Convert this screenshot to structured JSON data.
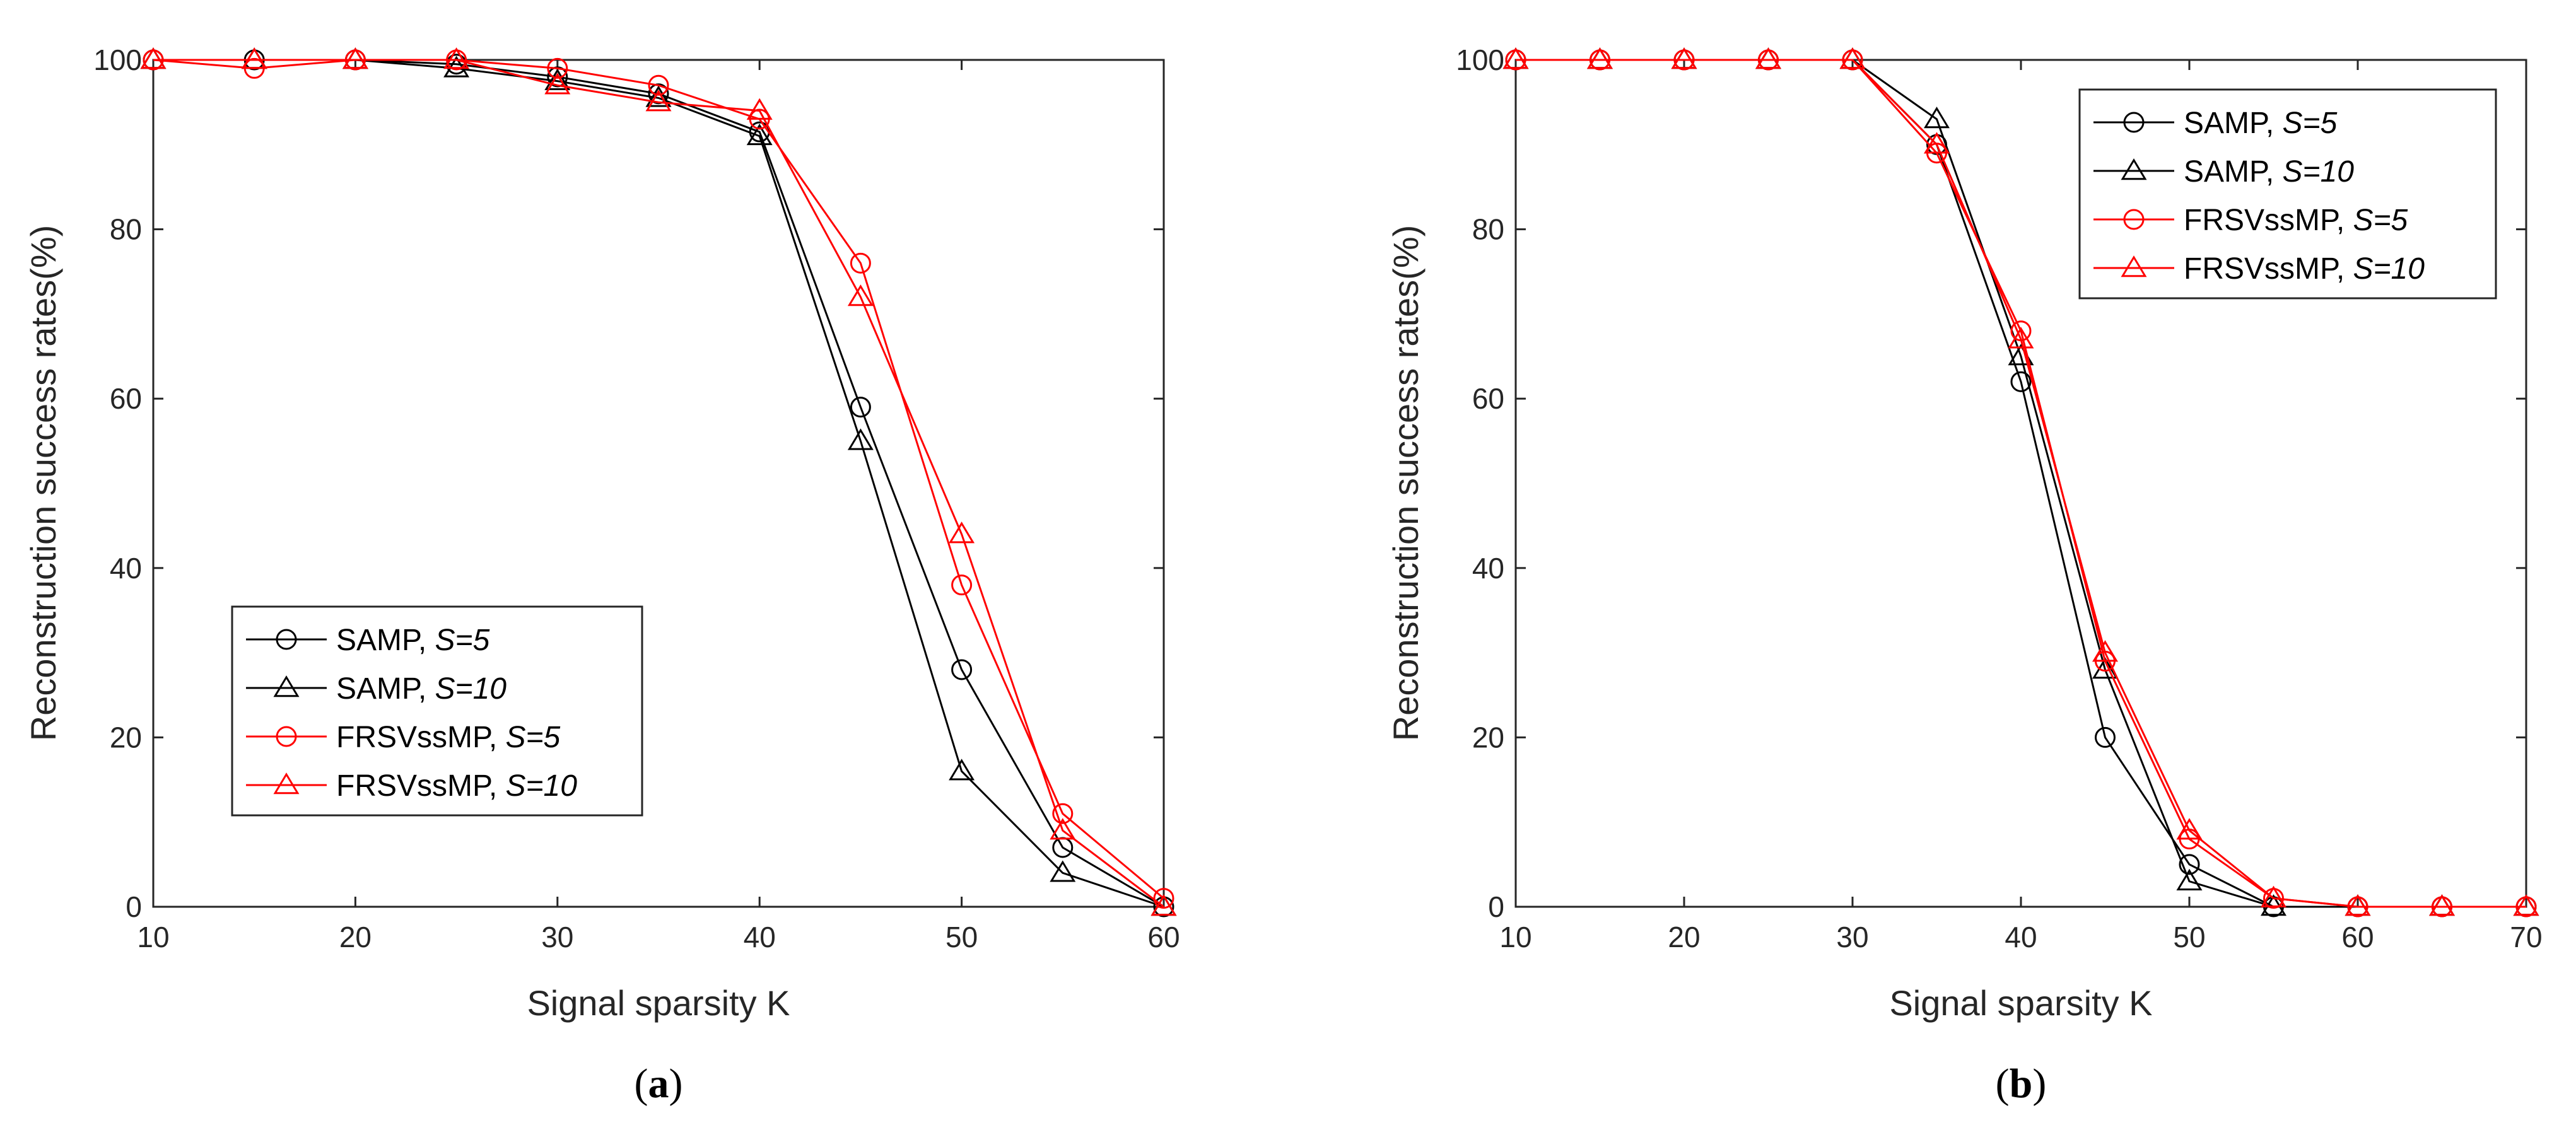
{
  "chart_data": [
    {
      "type": "line",
      "caption": {
        "open": "(",
        "letter": "a",
        "close": ")"
      },
      "xlabel": "Signal sparsity K",
      "ylabel": "Reconstruction success rates(%)",
      "xlim": [
        10,
        60
      ],
      "ylim": [
        0,
        100
      ],
      "xticks": [
        10,
        20,
        30,
        40,
        50,
        60
      ],
      "yticks": [
        0,
        20,
        40,
        60,
        80,
        100
      ],
      "grid": false,
      "legend_position": "center-left",
      "x": [
        10,
        15,
        20,
        25,
        30,
        35,
        40,
        45,
        50,
        55,
        60
      ],
      "series": [
        {
          "name": "SAMP, S=5",
          "label_main": "SAMP, ",
          "label_param": "S=5",
          "color": "#000000",
          "marker": "circle",
          "values": [
            100,
            100,
            100,
            99.5,
            98,
            96,
            91.5,
            59,
            28,
            7,
            0
          ]
        },
        {
          "name": "SAMP, S=10",
          "label_main": "SAMP, ",
          "label_param": "S=10",
          "color": "#000000",
          "marker": "triangle",
          "values": [
            100,
            100,
            100,
            99,
            97.5,
            95.5,
            91,
            55,
            16,
            4,
            0
          ]
        },
        {
          "name": "FRSVssMP, S=5",
          "label_main": "FRSVssMP, ",
          "label_param": "S=5",
          "color": "#ff0000",
          "marker": "circle",
          "values": [
            100,
            99,
            100,
            100,
            99,
            97,
            93,
            76,
            38,
            11,
            1
          ]
        },
        {
          "name": "FRSVssMP, S=10",
          "label_main": "FRSVssMP, ",
          "label_param": "S=10",
          "color": "#ff0000",
          "marker": "triangle",
          "values": [
            100,
            100,
            100,
            100,
            97,
            95,
            94,
            72,
            44,
            9,
            0
          ]
        }
      ]
    },
    {
      "type": "line",
      "caption": {
        "open": "(",
        "letter": "b",
        "close": ")"
      },
      "xlabel": "Signal sparsity K",
      "ylabel": "Reconstruction success rates(%)",
      "xlim": [
        10,
        70
      ],
      "ylim": [
        0,
        100
      ],
      "xticks": [
        10,
        20,
        30,
        40,
        50,
        60,
        70
      ],
      "yticks": [
        0,
        20,
        40,
        60,
        80,
        100
      ],
      "grid": false,
      "legend_position": "top-right",
      "x": [
        10,
        15,
        20,
        25,
        30,
        35,
        40,
        45,
        50,
        55,
        60,
        65,
        70
      ],
      "series": [
        {
          "name": "SAMP, S=5",
          "label_main": "SAMP, ",
          "label_param": "S=5",
          "color": "#000000",
          "marker": "circle",
          "values": [
            100,
            100,
            100,
            100,
            100,
            90,
            62,
            20,
            5,
            0,
            0,
            0,
            0
          ]
        },
        {
          "name": "SAMP, S=10",
          "label_main": "SAMP, ",
          "label_param": "S=10",
          "color": "#000000",
          "marker": "triangle",
          "values": [
            100,
            100,
            100,
            100,
            100,
            93,
            65,
            28,
            3,
            0,
            0,
            0,
            0
          ]
        },
        {
          "name": "FRSVssMP, S=5",
          "label_main": "FRSVssMP, ",
          "label_param": "S=5",
          "color": "#ff0000",
          "marker": "circle",
          "values": [
            100,
            100,
            100,
            100,
            100,
            89,
            68,
            29,
            8,
            1,
            0,
            0,
            0
          ]
        },
        {
          "name": "FRSVssMP, S=10",
          "label_main": "FRSVssMP, ",
          "label_param": "S=10",
          "color": "#ff0000",
          "marker": "triangle",
          "values": [
            100,
            100,
            100,
            100,
            100,
            90,
            67,
            30,
            9,
            1,
            0,
            0,
            0
          ]
        }
      ]
    }
  ]
}
